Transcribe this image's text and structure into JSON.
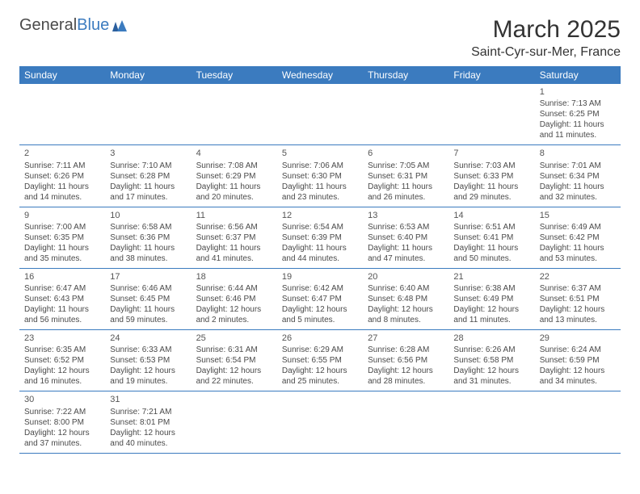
{
  "logo": {
    "text1": "General",
    "text2": "Blue"
  },
  "title": "March 2025",
  "location": "Saint-Cyr-sur-Mer, France",
  "colors": {
    "header_bg": "#3b7bbf",
    "header_text": "#ffffff",
    "border": "#3b7bbf",
    "text": "#4a4a4a",
    "logo_blue": "#3b7bbf"
  },
  "day_headers": [
    "Sunday",
    "Monday",
    "Tuesday",
    "Wednesday",
    "Thursday",
    "Friday",
    "Saturday"
  ],
  "weeks": [
    [
      null,
      null,
      null,
      null,
      null,
      null,
      {
        "n": "1",
        "sr": "7:13 AM",
        "ss": "6:25 PM",
        "dh": "11",
        "dm": "11"
      }
    ],
    [
      {
        "n": "2",
        "sr": "7:11 AM",
        "ss": "6:26 PM",
        "dh": "11",
        "dm": "14"
      },
      {
        "n": "3",
        "sr": "7:10 AM",
        "ss": "6:28 PM",
        "dh": "11",
        "dm": "17"
      },
      {
        "n": "4",
        "sr": "7:08 AM",
        "ss": "6:29 PM",
        "dh": "11",
        "dm": "20"
      },
      {
        "n": "5",
        "sr": "7:06 AM",
        "ss": "6:30 PM",
        "dh": "11",
        "dm": "23"
      },
      {
        "n": "6",
        "sr": "7:05 AM",
        "ss": "6:31 PM",
        "dh": "11",
        "dm": "26"
      },
      {
        "n": "7",
        "sr": "7:03 AM",
        "ss": "6:33 PM",
        "dh": "11",
        "dm": "29"
      },
      {
        "n": "8",
        "sr": "7:01 AM",
        "ss": "6:34 PM",
        "dh": "11",
        "dm": "32"
      }
    ],
    [
      {
        "n": "9",
        "sr": "7:00 AM",
        "ss": "6:35 PM",
        "dh": "11",
        "dm": "35"
      },
      {
        "n": "10",
        "sr": "6:58 AM",
        "ss": "6:36 PM",
        "dh": "11",
        "dm": "38"
      },
      {
        "n": "11",
        "sr": "6:56 AM",
        "ss": "6:37 PM",
        "dh": "11",
        "dm": "41"
      },
      {
        "n": "12",
        "sr": "6:54 AM",
        "ss": "6:39 PM",
        "dh": "11",
        "dm": "44"
      },
      {
        "n": "13",
        "sr": "6:53 AM",
        "ss": "6:40 PM",
        "dh": "11",
        "dm": "47"
      },
      {
        "n": "14",
        "sr": "6:51 AM",
        "ss": "6:41 PM",
        "dh": "11",
        "dm": "50"
      },
      {
        "n": "15",
        "sr": "6:49 AM",
        "ss": "6:42 PM",
        "dh": "11",
        "dm": "53"
      }
    ],
    [
      {
        "n": "16",
        "sr": "6:47 AM",
        "ss": "6:43 PM",
        "dh": "11",
        "dm": "56"
      },
      {
        "n": "17",
        "sr": "6:46 AM",
        "ss": "6:45 PM",
        "dh": "11",
        "dm": "59"
      },
      {
        "n": "18",
        "sr": "6:44 AM",
        "ss": "6:46 PM",
        "dh": "12",
        "dm": "2"
      },
      {
        "n": "19",
        "sr": "6:42 AM",
        "ss": "6:47 PM",
        "dh": "12",
        "dm": "5"
      },
      {
        "n": "20",
        "sr": "6:40 AM",
        "ss": "6:48 PM",
        "dh": "12",
        "dm": "8"
      },
      {
        "n": "21",
        "sr": "6:38 AM",
        "ss": "6:49 PM",
        "dh": "12",
        "dm": "11"
      },
      {
        "n": "22",
        "sr": "6:37 AM",
        "ss": "6:51 PM",
        "dh": "12",
        "dm": "13"
      }
    ],
    [
      {
        "n": "23",
        "sr": "6:35 AM",
        "ss": "6:52 PM",
        "dh": "12",
        "dm": "16"
      },
      {
        "n": "24",
        "sr": "6:33 AM",
        "ss": "6:53 PM",
        "dh": "12",
        "dm": "19"
      },
      {
        "n": "25",
        "sr": "6:31 AM",
        "ss": "6:54 PM",
        "dh": "12",
        "dm": "22"
      },
      {
        "n": "26",
        "sr": "6:29 AM",
        "ss": "6:55 PM",
        "dh": "12",
        "dm": "25"
      },
      {
        "n": "27",
        "sr": "6:28 AM",
        "ss": "6:56 PM",
        "dh": "12",
        "dm": "28"
      },
      {
        "n": "28",
        "sr": "6:26 AM",
        "ss": "6:58 PM",
        "dh": "12",
        "dm": "31"
      },
      {
        "n": "29",
        "sr": "6:24 AM",
        "ss": "6:59 PM",
        "dh": "12",
        "dm": "34"
      }
    ],
    [
      {
        "n": "30",
        "sr": "7:22 AM",
        "ss": "8:00 PM",
        "dh": "12",
        "dm": "37"
      },
      {
        "n": "31",
        "sr": "7:21 AM",
        "ss": "8:01 PM",
        "dh": "12",
        "dm": "40"
      },
      null,
      null,
      null,
      null,
      null
    ]
  ],
  "labels": {
    "sunrise": "Sunrise:",
    "sunset": "Sunset:",
    "daylight": "Daylight:",
    "hours_and": "hours and",
    "minutes": "minutes."
  }
}
